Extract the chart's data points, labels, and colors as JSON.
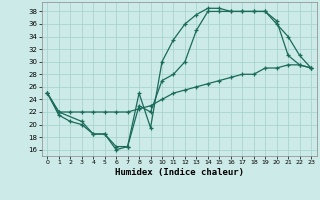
{
  "xlabel": "Humidex (Indice chaleur)",
  "bg_color": "#cceae7",
  "grid_color": "#aad4d0",
  "line_color": "#1a6b5a",
  "xlim": [
    -0.5,
    23.5
  ],
  "ylim": [
    15.0,
    39.5
  ],
  "yticks": [
    16,
    18,
    20,
    22,
    24,
    26,
    28,
    30,
    32,
    34,
    36,
    38
  ],
  "xticks": [
    0,
    1,
    2,
    3,
    4,
    5,
    6,
    7,
    8,
    9,
    10,
    11,
    12,
    13,
    14,
    15,
    16,
    17,
    18,
    19,
    20,
    21,
    22,
    23
  ],
  "line1_x": [
    0,
    1,
    2,
    3,
    4,
    5,
    6,
    7,
    8,
    9,
    10,
    11,
    12,
    13,
    14,
    15,
    16,
    17,
    18,
    19,
    20,
    21,
    22,
    23
  ],
  "line1_y": [
    25,
    21.5,
    20.5,
    20,
    18.5,
    18.5,
    16,
    16.5,
    25,
    19.5,
    30,
    33.5,
    36,
    37.5,
    38.5,
    38.5,
    38,
    38,
    38,
    38,
    36,
    34,
    31,
    29
  ],
  "line2_x": [
    0,
    1,
    3,
    4,
    5,
    6,
    7,
    8,
    9,
    10,
    11,
    12,
    13,
    14,
    15,
    16,
    17,
    18,
    19,
    20,
    21,
    22,
    23
  ],
  "line2_y": [
    25,
    22,
    20.5,
    18.5,
    18.5,
    16.5,
    16.5,
    23,
    22,
    27,
    28,
    30,
    35,
    38,
    38,
    38,
    38,
    38,
    38,
    36.5,
    31,
    29.5,
    29
  ],
  "line3_x": [
    0,
    1,
    2,
    3,
    4,
    5,
    6,
    7,
    8,
    9,
    10,
    11,
    12,
    13,
    14,
    15,
    16,
    17,
    18,
    19,
    20,
    21,
    22,
    23
  ],
  "line3_y": [
    25,
    22,
    22,
    22,
    22,
    22,
    22,
    22,
    22.5,
    23,
    24,
    25,
    25.5,
    26,
    26.5,
    27,
    27.5,
    28,
    28,
    29,
    29,
    29.5,
    29.5,
    29
  ]
}
